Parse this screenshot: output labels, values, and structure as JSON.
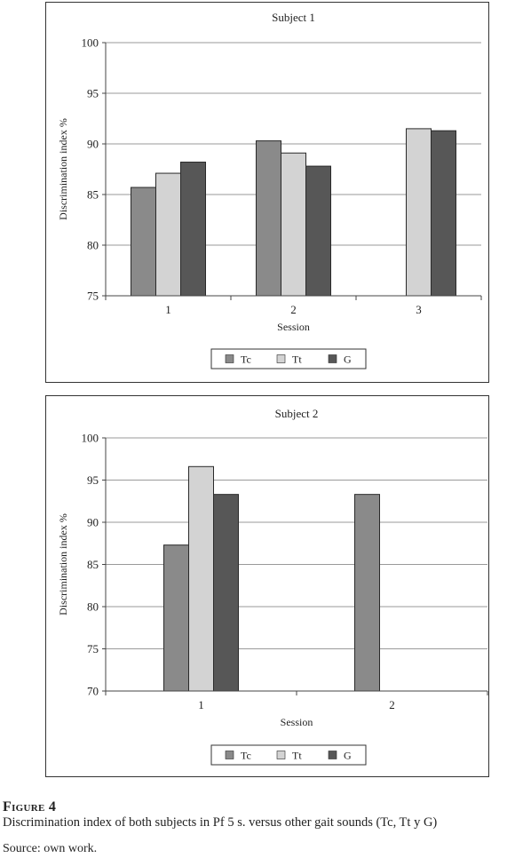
{
  "colors": {
    "Tc": "#8a8a8a",
    "Tt": "#d3d3d3",
    "G": "#575757"
  },
  "chart_data": [
    {
      "type": "bar",
      "title": "Subject 1",
      "xlabel": "Session",
      "ylabel": "Discrimination index %",
      "categories": [
        "1",
        "2",
        "3"
      ],
      "ylim": [
        75,
        100
      ],
      "yticks": [
        75,
        80,
        85,
        90,
        95,
        100
      ],
      "grid": true,
      "legend": "bottom",
      "series": [
        {
          "name": "Tc",
          "values": [
            85.7,
            90.3,
            null
          ]
        },
        {
          "name": "Tt",
          "values": [
            87.1,
            89.1,
            91.5
          ]
        },
        {
          "name": "G",
          "values": [
            88.2,
            87.8,
            91.3
          ]
        }
      ]
    },
    {
      "type": "bar",
      "title": "Subject 2",
      "xlabel": "Session",
      "ylabel": "Discrimination index %",
      "categories": [
        "1",
        "2"
      ],
      "ylim": [
        70,
        100
      ],
      "yticks": [
        70,
        75,
        80,
        85,
        90,
        95,
        100
      ],
      "grid": true,
      "legend": "bottom",
      "series": [
        {
          "name": "Tc",
          "values": [
            87.3,
            93.3
          ]
        },
        {
          "name": "Tt",
          "values": [
            96.6,
            null
          ]
        },
        {
          "name": "G",
          "values": [
            93.3,
            null
          ]
        }
      ]
    }
  ],
  "figure": {
    "label": "Figure 4",
    "caption": "Discrimination index of both subjects in Pf 5 s. versus other gait sounds (Tc, Tt y G)",
    "source": "Source: own work."
  }
}
